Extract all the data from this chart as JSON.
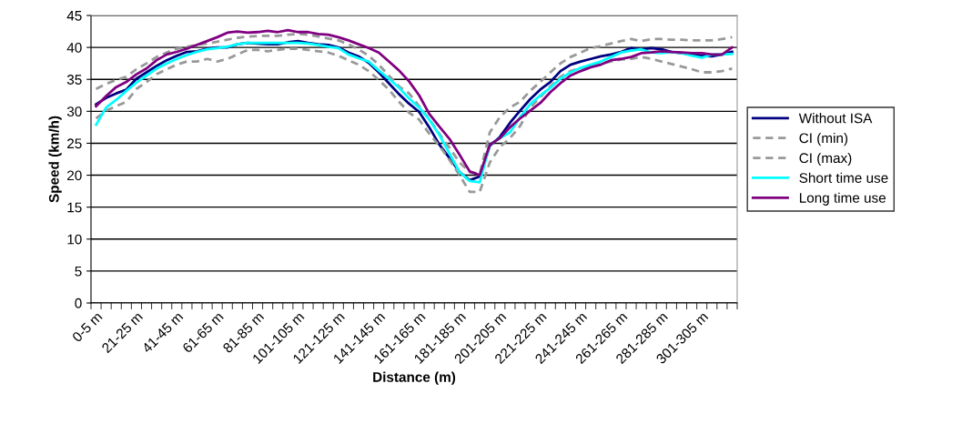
{
  "chart_data": {
    "type": "line",
    "xlabel": "Distance (m)",
    "ylabel": "Speed (km/h)",
    "categories": [
      "0-5 m",
      null,
      null,
      null,
      "21-25 m",
      null,
      null,
      null,
      "41-45 m",
      null,
      null,
      null,
      "61-65 m",
      null,
      null,
      null,
      "81-85 m",
      null,
      null,
      null,
      "101-105 m",
      null,
      null,
      null,
      "121-125 m",
      null,
      null,
      null,
      "141-145 m",
      null,
      null,
      null,
      "161-165 m",
      null,
      null,
      null,
      "181-185 m",
      null,
      null,
      null,
      "201-205 m",
      null,
      null,
      null,
      "221-225 m",
      null,
      null,
      null,
      "241-245 m",
      null,
      null,
      null,
      "261-265 m",
      null,
      null,
      null,
      "281-285 m",
      null,
      null,
      null,
      "301-305 m",
      null,
      null,
      null
    ],
    "ylim": [
      0,
      45
    ],
    "yticks": [
      0,
      5,
      10,
      15,
      20,
      25,
      30,
      35,
      40,
      45
    ],
    "grid": "y",
    "legend": "right",
    "marker": "none",
    "series": [
      {
        "name": "Without ISA",
        "color": "#000080",
        "line_style": "solid",
        "values": [
          31.1,
          32.1,
          32.8,
          33.4,
          35.1,
          36.1,
          37.1,
          38.0,
          38.7,
          39.3,
          39.4,
          39.8,
          40.0,
          40.0,
          40.5,
          40.7,
          40.6,
          40.5,
          40.5,
          40.8,
          41.0,
          40.7,
          40.5,
          40.4,
          40.0,
          39.2,
          38.6,
          37.6,
          36.1,
          34.4,
          32.7,
          31.2,
          29.9,
          27.5,
          24.8,
          22.7,
          20.5,
          19.2,
          19.8,
          24.6,
          26.0,
          28.2,
          30.1,
          31.9,
          33.4,
          34.6,
          36.3,
          37.3,
          37.8,
          38.2,
          38.6,
          38.9,
          39.3,
          39.9,
          39.7,
          39.9,
          39.7,
          39.3,
          39.1,
          38.9,
          38.7,
          38.6,
          38.9,
          39.3
        ]
      },
      {
        "name": "CI (min)",
        "color": "#999999",
        "line_style": "dashed",
        "values": [
          28.9,
          30.1,
          30.8,
          31.5,
          33.5,
          34.6,
          35.8,
          36.6,
          37.3,
          37.8,
          37.8,
          38.2,
          37.8,
          38.2,
          38.9,
          39.6,
          39.6,
          39.4,
          39.6,
          39.8,
          39.8,
          39.6,
          39.4,
          39.2,
          38.7,
          38.0,
          37.3,
          36.3,
          34.9,
          33.4,
          31.5,
          29.8,
          28.7,
          26.5,
          24.6,
          22.4,
          20.0,
          17.4,
          17.4,
          22.0,
          24.4,
          25.8,
          27.7,
          30.6,
          32.2,
          33.9,
          35.4,
          36.3,
          36.8,
          37.0,
          37.5,
          37.8,
          38.1,
          38.2,
          38.5,
          38.2,
          37.8,
          37.4,
          37.0,
          36.6,
          36.1,
          36.1,
          36.3,
          36.7
        ]
      },
      {
        "name": "CI (max)",
        "color": "#999999",
        "line_style": "dashed",
        "values": [
          33.5,
          34.3,
          34.9,
          35.4,
          36.6,
          37.5,
          38.5,
          39.2,
          39.8,
          40.1,
          40.4,
          40.6,
          40.9,
          41.2,
          41.5,
          41.7,
          41.8,
          41.8,
          41.8,
          42.0,
          42.1,
          42.0,
          41.7,
          41.4,
          41.1,
          40.5,
          39.7,
          38.7,
          37.3,
          35.6,
          33.9,
          32.8,
          30.8,
          28.8,
          26.5,
          24.3,
          22.0,
          20.5,
          20.2,
          26.7,
          29.1,
          30.6,
          31.5,
          33.2,
          34.6,
          36.1,
          37.5,
          38.5,
          39.2,
          39.9,
          40.2,
          40.6,
          41.0,
          41.3,
          41.0,
          41.3,
          41.3,
          41.2,
          41.2,
          41.1,
          41.1,
          41.1,
          41.3,
          41.6
        ]
      },
      {
        "name": "Short time use",
        "color": "#00ffff",
        "line_style": "solid",
        "values": [
          27.9,
          30.6,
          31.8,
          33.2,
          34.5,
          35.6,
          36.7,
          37.5,
          38.2,
          38.8,
          39.3,
          39.7,
          39.9,
          40.1,
          40.5,
          40.7,
          40.7,
          40.7,
          40.7,
          40.7,
          40.7,
          40.6,
          40.4,
          40.1,
          39.9,
          38.9,
          38.3,
          37.8,
          36.4,
          35.1,
          33.7,
          32.0,
          30.6,
          28.7,
          26.3,
          23.4,
          20.5,
          19.1,
          18.9,
          24.8,
          25.8,
          26.7,
          29.1,
          31.1,
          32.5,
          33.7,
          35.1,
          36.1,
          36.8,
          37.3,
          37.8,
          38.5,
          39.2,
          39.5,
          39.7,
          39.2,
          39.1,
          39.3,
          39.1,
          38.7,
          38.4,
          38.9,
          38.9,
          39.0
        ]
      },
      {
        "name": "Long time use",
        "color": "#800080",
        "line_style": "solid",
        "values": [
          30.8,
          32.4,
          33.8,
          34.6,
          35.8,
          36.7,
          38.0,
          38.9,
          39.3,
          39.8,
          40.4,
          41.0,
          41.6,
          42.3,
          42.5,
          42.3,
          42.4,
          42.6,
          42.4,
          42.7,
          42.4,
          42.4,
          42.1,
          42.0,
          41.6,
          41.1,
          40.5,
          39.9,
          39.2,
          37.8,
          36.4,
          34.7,
          32.5,
          29.6,
          27.6,
          25.7,
          23.2,
          20.6,
          20.0,
          24.8,
          25.8,
          27.5,
          28.9,
          30.1,
          31.3,
          33.0,
          34.4,
          35.6,
          36.3,
          36.9,
          37.3,
          38.0,
          38.2,
          38.5,
          39.1,
          39.2,
          39.4,
          39.3,
          39.2,
          39.1,
          39.1,
          38.9,
          38.9,
          40.0
        ]
      }
    ]
  }
}
